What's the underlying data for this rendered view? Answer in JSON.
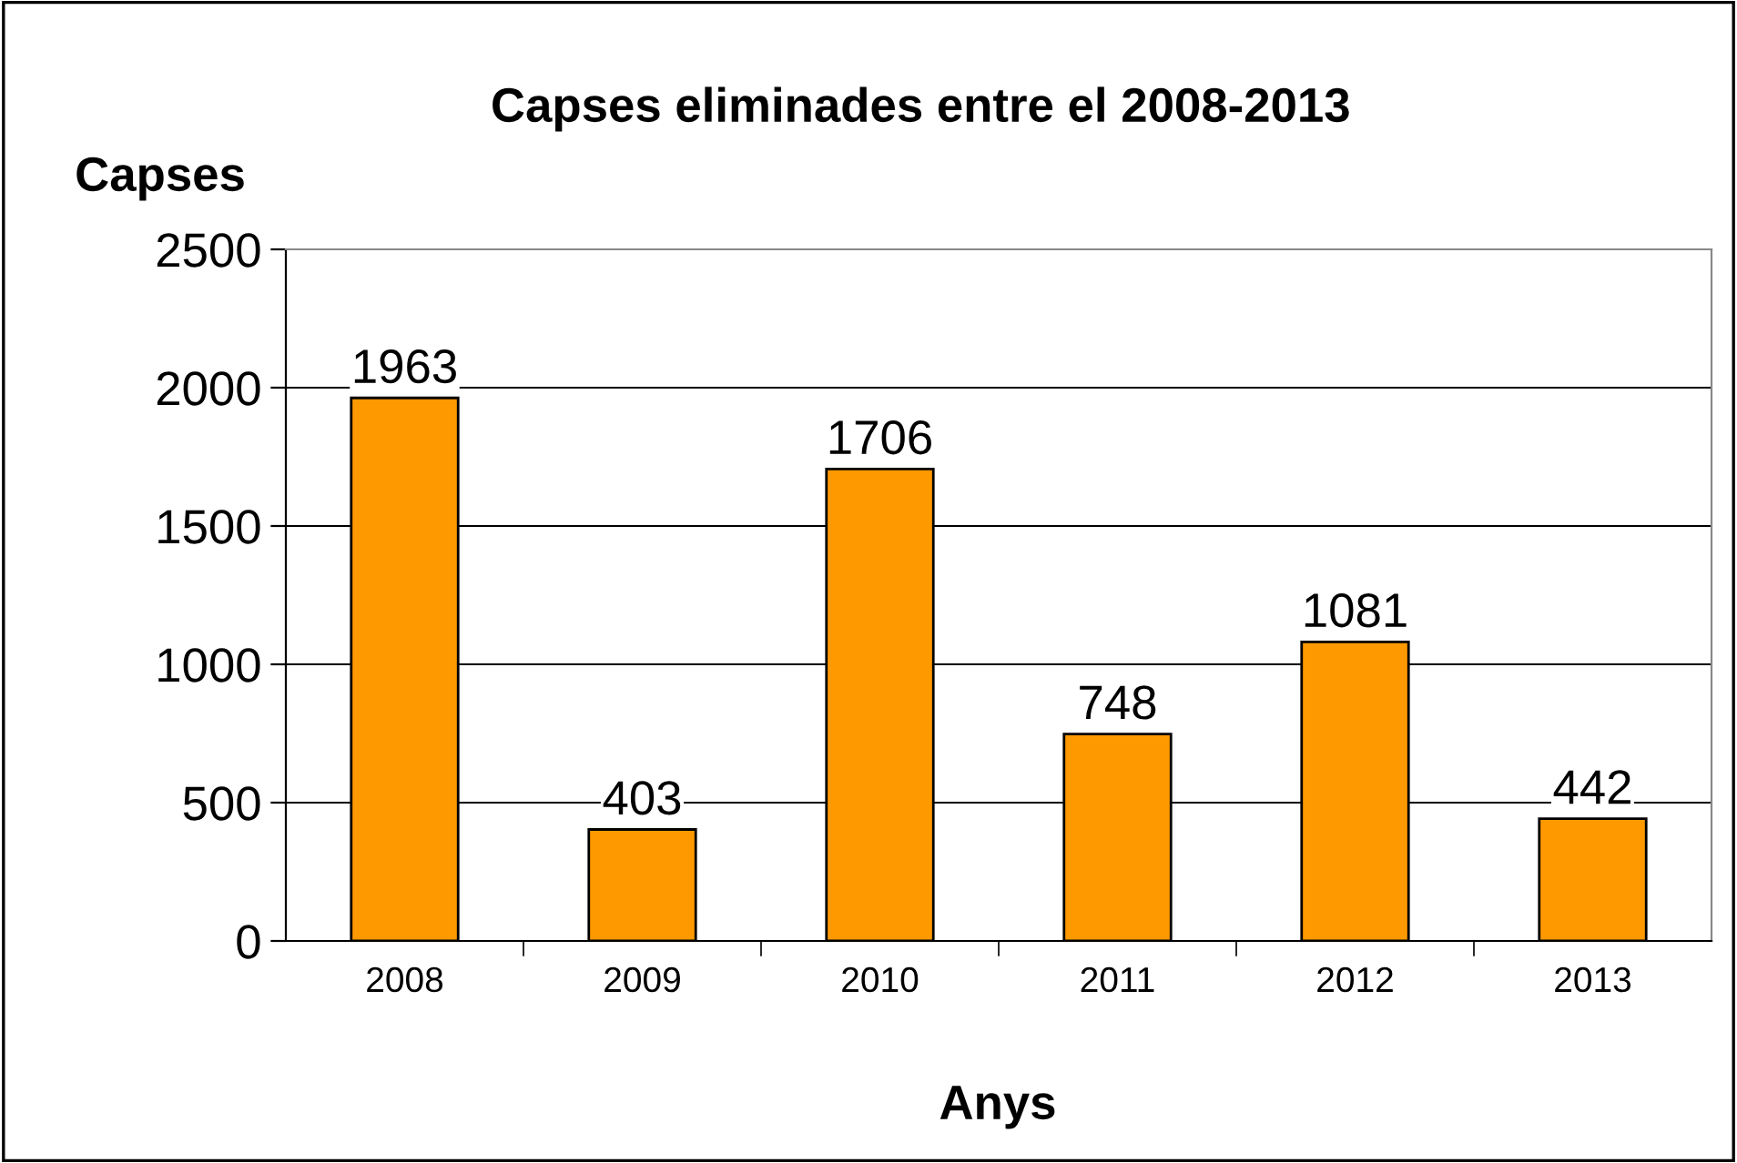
{
  "chart_data": {
    "type": "bar",
    "title": "Capses eliminades entre el 2008-2013",
    "ylabel": "Capses",
    "xlabel": "Anys",
    "categories": [
      "2008",
      "2009",
      "2010",
      "2011",
      "2012",
      "2013"
    ],
    "values": [
      1963,
      403,
      1706,
      748,
      1081,
      442
    ],
    "color": "#ff9900",
    "ylim": [
      0,
      2500
    ],
    "yticks": [
      0,
      500,
      1000,
      1500,
      2000,
      2500
    ],
    "grid": "y",
    "data_labels": true
  }
}
